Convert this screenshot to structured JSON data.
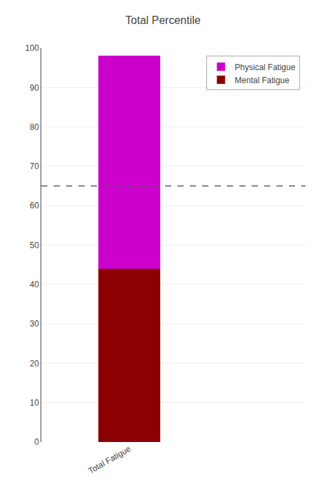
{
  "chart_data": {
    "type": "bar",
    "stacked": true,
    "title": "Total Percentile",
    "categories": [
      "Total Fatigue"
    ],
    "series": [
      {
        "name": "Mental Fatigue",
        "color": "#8b0000",
        "values": [
          44
        ]
      },
      {
        "name": "Physical Fatigue",
        "color": "#cc00cc",
        "values": [
          54
        ]
      }
    ],
    "reference_line": {
      "y": 65,
      "color": "#555555",
      "line_style": "dashed"
    },
    "ylim": [
      0,
      100
    ],
    "yticks": [
      0,
      10,
      20,
      30,
      40,
      50,
      60,
      70,
      80,
      90,
      100
    ],
    "grid": true,
    "legend": "upper right"
  }
}
